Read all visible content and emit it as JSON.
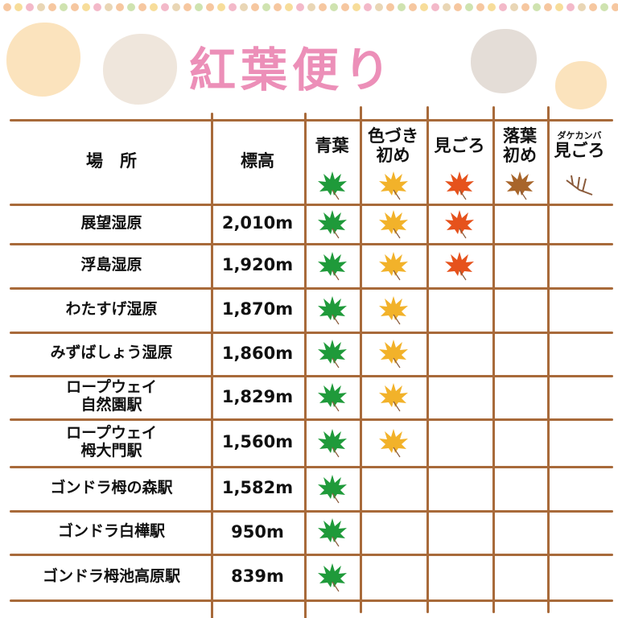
{
  "title": "紅葉便り",
  "header": {
    "place": "場　所",
    "elevation": "標高",
    "stages": [
      {
        "label": "青葉",
        "sub": "",
        "color": "#1f9a3a",
        "icon": "green-maple-leaf-icon"
      },
      {
        "label": "色づき\n初め",
        "sub": "",
        "color": "#f2b22a",
        "icon": "yellow-maple-leaf-icon"
      },
      {
        "label": "見ごろ",
        "sub": "",
        "color": "#e6521c",
        "icon": "red-maple-leaf-icon"
      },
      {
        "label": "落葉\n初め",
        "sub": "",
        "color": "#a8652a",
        "icon": "brown-maple-leaf-icon"
      },
      {
        "label": "見ごろ",
        "sub": "ダケカンバ",
        "color": "#8a5a3a",
        "icon": "bare-branch-icon"
      }
    ]
  },
  "rows": [
    {
      "place": "展望湿原",
      "elevation": "2,010m",
      "stage": 3
    },
    {
      "place": "浮島湿原",
      "elevation": "1,920m",
      "stage": 3
    },
    {
      "place": "わたすげ湿原",
      "elevation": "1,870m",
      "stage": 2
    },
    {
      "place": "みずばしょう湿原",
      "elevation": "1,860m",
      "stage": 2
    },
    {
      "place": "ロープウェイ\n自然園駅",
      "elevation": "1,829m",
      "stage": 2
    },
    {
      "place": "ロープウェイ\n栂大門駅",
      "elevation": "1,560m",
      "stage": 2
    },
    {
      "place": "ゴンドラ栂の森駅",
      "elevation": "1,582m",
      "stage": 1
    },
    {
      "place": "ゴンドラ白樺駅",
      "elevation": "950m",
      "stage": 1
    },
    {
      "place": "ゴンドラ栂池高原駅",
      "elevation": "839m",
      "stage": 1
    }
  ]
}
